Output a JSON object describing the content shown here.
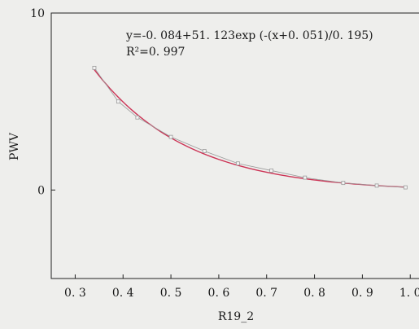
{
  "chart_data": {
    "type": "scatter",
    "xlabel": "R19_2",
    "ylabel": "PWV",
    "xlim": [
      0.25,
      1.02
    ],
    "ylim": [
      -5,
      10
    ],
    "xticks": [
      0.3,
      0.4,
      0.5,
      0.6,
      0.7,
      0.8,
      0.9,
      1.0
    ],
    "xtick_labels": [
      "0. 3",
      "0. 4",
      "0. 5",
      "0. 6",
      "0. 7",
      "0. 8",
      "0. 9",
      "1. 0"
    ],
    "yticks": [
      0,
      10
    ],
    "ytick_labels": [
      "0",
      "10"
    ],
    "annotation": {
      "equation": "y=-0. 084+51. 123exp (-(x+0. 051)/0. 195)",
      "r2": "R²=0. 997"
    },
    "series": [
      {
        "kind": "points",
        "color": "#9a9a9a",
        "x": [
          0.34,
          0.39,
          0.43,
          0.5,
          0.57,
          0.64,
          0.71,
          0.78,
          0.86,
          0.93,
          0.99
        ],
        "y": [
          6.9,
          5.0,
          4.1,
          3.0,
          2.2,
          1.5,
          1.1,
          0.7,
          0.4,
          0.25,
          0.15
        ]
      },
      {
        "kind": "fit",
        "color": "#cc3355",
        "x_range": [
          0.34,
          0.99
        ],
        "model": {
          "a": -0.084,
          "b": 51.123,
          "x0": -0.051,
          "t": 0.195
        }
      }
    ]
  }
}
